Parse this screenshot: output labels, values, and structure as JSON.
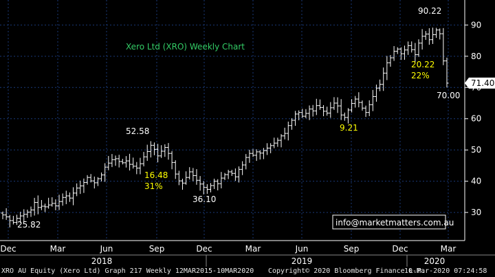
{
  "chart_data": {
    "type": "ohlc",
    "title": "Xero Ltd (XRO) Weekly Chart",
    "y_axis": {
      "ylim": [
        21,
        98
      ],
      "ticks": [
        30,
        40,
        50,
        60,
        70,
        80,
        90
      ],
      "position": "right"
    },
    "x_axis": {
      "month_labels": [
        "Dec",
        "Mar",
        "Jun",
        "Sep",
        "Dec",
        "Mar",
        "Jun",
        "Sep",
        "Dec",
        "Mar"
      ],
      "year_labels": [
        "2018",
        "2019",
        "2020"
      ]
    },
    "grid": true,
    "series_color": "#ffffff",
    "weekly_close": [
      29.2,
      28.6,
      27.4,
      26.8,
      28.1,
      28.9,
      29.4,
      30.1,
      30.8,
      33.2,
      31.6,
      32.0,
      31.8,
      32.4,
      32.9,
      32.1,
      33.5,
      34.8,
      35.3,
      34.6,
      36.2,
      37.8,
      38.5,
      39.6,
      41.2,
      40.1,
      39.5,
      40.8,
      42.0,
      44.5,
      45.8,
      46.9,
      47.2,
      46.3,
      45.9,
      46.5,
      45.4,
      44.8,
      44.2,
      45.6,
      47.8,
      49.5,
      51.5,
      50.2,
      48.1,
      49.6,
      50.8,
      48.9,
      46.0,
      42.3,
      40.1,
      39.4,
      41.2,
      43.0,
      41.8,
      40.3,
      39.1,
      38.0,
      37.4,
      38.6,
      40.0,
      39.2,
      41.0,
      42.1,
      43.0,
      42.5,
      41.4,
      43.8,
      45.2,
      47.6,
      48.9,
      48.3,
      49.4,
      49.0,
      49.8,
      50.6,
      51.4,
      52.2,
      53.1,
      54.5,
      55.3,
      57.8,
      59.5,
      61.5,
      62.0,
      60.8,
      61.7,
      63.1,
      62.5,
      64.2,
      63.6,
      62.4,
      61.8,
      63.5,
      65.0,
      64.1,
      61.2,
      60.4,
      62.8,
      64.9,
      66.3,
      65.2,
      63.4,
      62.0,
      64.5,
      67.1,
      69.8,
      71.0,
      74.6,
      77.9,
      79.5,
      81.6,
      82.3,
      80.8,
      82.0,
      83.4,
      82.1,
      80.5,
      84.2,
      86.4,
      87.1,
      85.3,
      86.9,
      88.4,
      87.2,
      78.5,
      71.4
    ],
    "annotations": [
      {
        "text": "25.82",
        "color": "#ffffff"
      },
      {
        "text": "52.58",
        "color": "#ffffff"
      },
      {
        "text": "36.10",
        "color": "#ffffff"
      },
      {
        "text": "9.21",
        "color": "#ffff00"
      },
      {
        "text": "90.22",
        "color": "#ffffff"
      },
      {
        "text": "70.00",
        "color": "#ffffff"
      },
      {
        "text": "16.48",
        "color": "#ffff00"
      },
      {
        "text": "31%",
        "color": "#ffff00"
      },
      {
        "text": "20.22",
        "color": "#ffff00"
      },
      {
        "text": "22%",
        "color": "#ffff00"
      }
    ],
    "last_price": {
      "value": 71.4,
      "label": "71.40"
    },
    "watermark": "info@marketmatters.com.au"
  },
  "colors": {
    "background": "#000000",
    "grid": "#1a3a7a",
    "title": "#33cc66",
    "highlight": "#ffff00"
  },
  "footer": {
    "left": "XRO AU Equity (Xero Ltd) Graph 217  Weekly 12MAR2015-10MAR2020",
    "copyright": "Copyright© 2020 Bloomberg Finance L.P.",
    "timestamp": "10-Mar-2020 07:24:58"
  }
}
